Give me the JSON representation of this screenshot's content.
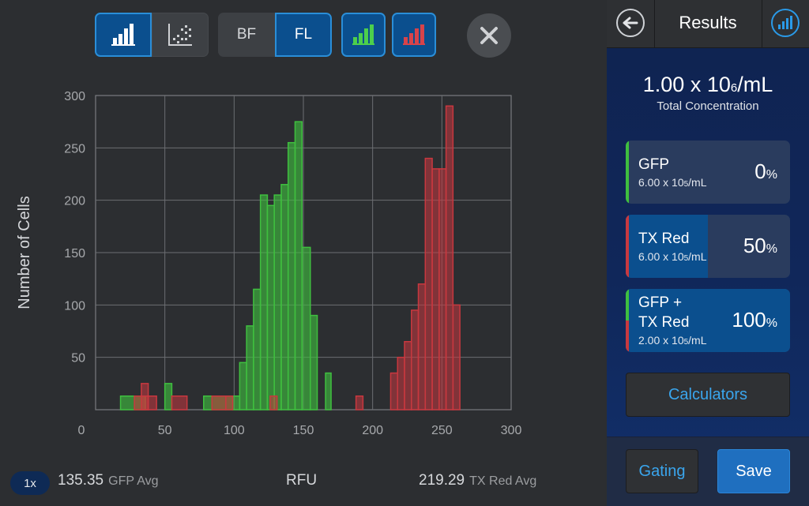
{
  "toolbar": {
    "histogram_icon": "histogram-icon",
    "scatter_icon": "scatter-icon",
    "bf_label": "BF",
    "fl_label": "FL",
    "green_channel_icon": "green-histogram-icon",
    "red_channel_icon": "red-histogram-icon",
    "close_icon": "close-icon"
  },
  "chart_data": {
    "type": "histogram",
    "xlabel": "RFU",
    "ylabel": "Number of Cells",
    "xlim": [
      0,
      300
    ],
    "ylim": [
      0,
      300
    ],
    "x_ticks": [
      "0",
      "50",
      "100",
      "150",
      "200",
      "250",
      "300"
    ],
    "y_ticks": [
      "50",
      "100",
      "150",
      "200",
      "250",
      "300"
    ],
    "grid": true,
    "series": [
      {
        "color": "#3fbf3f",
        "bins": [
          [
            18,
            36,
            13
          ],
          [
            50,
            55,
            25
          ],
          [
            55,
            60,
            0
          ],
          [
            78,
            99,
            13
          ],
          [
            99,
            104,
            13
          ],
          [
            104,
            109,
            45
          ],
          [
            109,
            114,
            80
          ],
          [
            114,
            119,
            115
          ],
          [
            119,
            124,
            205
          ],
          [
            124,
            129,
            195
          ],
          [
            129,
            134,
            205
          ],
          [
            134,
            139,
            215
          ],
          [
            139,
            144,
            255
          ],
          [
            144,
            149,
            275
          ],
          [
            149,
            155,
            155
          ],
          [
            155,
            160,
            90
          ],
          [
            160,
            166,
            0
          ],
          [
            166,
            170,
            35
          ]
        ]
      },
      {
        "color": "#c8383f",
        "bins": [
          [
            28,
            38,
            13
          ],
          [
            33,
            38,
            25
          ],
          [
            38,
            44,
            13
          ],
          [
            55,
            66,
            13
          ],
          [
            84,
            94,
            13
          ],
          [
            94,
            99,
            13
          ],
          [
            126,
            131,
            13
          ],
          [
            188,
            193,
            13
          ],
          [
            213,
            218,
            35
          ],
          [
            218,
            223,
            50
          ],
          [
            223,
            228,
            65
          ],
          [
            228,
            233,
            95
          ],
          [
            233,
            238,
            120
          ],
          [
            238,
            243,
            240
          ],
          [
            243,
            248,
            230
          ],
          [
            248,
            253,
            230
          ],
          [
            253,
            258,
            290
          ],
          [
            258,
            263,
            100
          ]
        ]
      }
    ],
    "gfp_avg": "135.35",
    "gfp_avg_label": "GFP Avg",
    "tx_red_avg": "219.29",
    "tx_red_avg_label": "TX Red Avg"
  },
  "bottom": {
    "zoom": "1x",
    "x_label": "RFU"
  },
  "results": {
    "back_icon": "back-arrow-icon",
    "title": "Results",
    "chart_icon": "histogram-icon",
    "total_value": "1.00 x 10",
    "total_exp": "6",
    "total_unit": "/mL",
    "total_label": "Total Concentration",
    "cards": [
      {
        "name_line1": "GFP",
        "name_line2": "",
        "conc": "6.00 x 10",
        "conc_exp": "5",
        "conc_unit": "/mL",
        "pct": "0",
        "pct_sign": "%",
        "fill": 0,
        "bar_top": "#3fbf3f",
        "bar_bottom": "#3fbf3f"
      },
      {
        "name_line1": "TX Red",
        "name_line2": "",
        "conc": "6.00 x 10",
        "conc_exp": "5",
        "conc_unit": "/mL",
        "pct": "50",
        "pct_sign": "%",
        "fill": 0.5,
        "bar_top": "#c8383f",
        "bar_bottom": "#c8383f"
      },
      {
        "name_line1": "GFP +",
        "name_line2": "TX Red",
        "conc": "2.00 x 10",
        "conc_exp": "5",
        "conc_unit": "/mL",
        "pct": "100",
        "pct_sign": "%",
        "fill": 1,
        "bar_top": "#3fbf3f",
        "bar_bottom": "#c8383f"
      }
    ],
    "calculators_label": "Calculators",
    "gating_label": "Gating",
    "save_label": "Save"
  }
}
